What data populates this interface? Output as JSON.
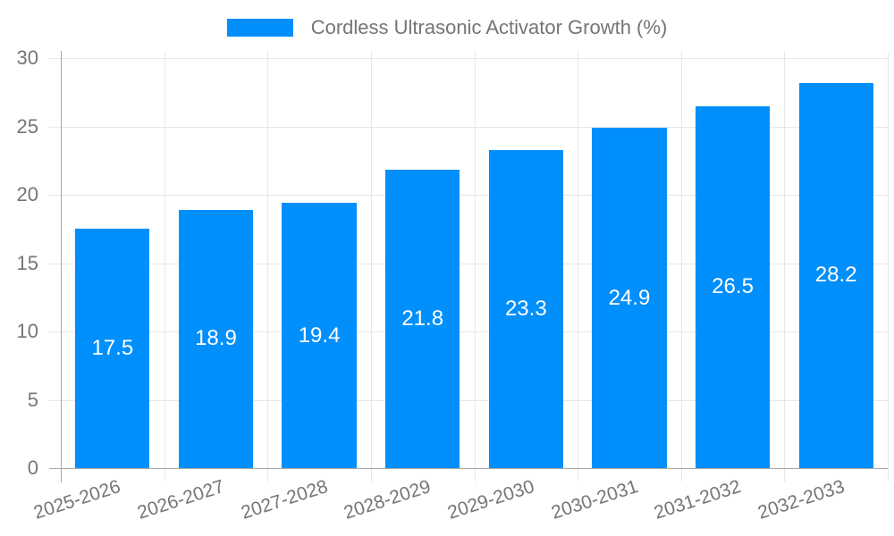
{
  "chart_data": {
    "type": "bar",
    "title": "Cordless Ultrasonic Activator Growth (%)",
    "legend": {
      "label": "Cordless Ultrasonic Activator Growth (%)",
      "position": "top-center",
      "marker": "square"
    },
    "categories": [
      "2025-2026",
      "2026-2027",
      "2027-2028",
      "2028-2029",
      "2029-2030",
      "2030-2031",
      "2031-2032",
      "2032-2033"
    ],
    "values": [
      17.5,
      18.9,
      19.4,
      21.8,
      23.3,
      24.9,
      26.5,
      28.2
    ],
    "value_labels": [
      "17.5",
      "18.9",
      "19.4",
      "21.8",
      "23.3",
      "24.9",
      "26.5",
      "28.2"
    ],
    "xlabel": "",
    "ylabel": "",
    "ylim": [
      0,
      30
    ],
    "ytick_step": 5,
    "ytick_labels": [
      "0",
      "5",
      "10",
      "15",
      "20",
      "25",
      "30"
    ],
    "grid": true,
    "value_label_position": "center-inside",
    "xtick_rotation_deg": -18,
    "colors": {
      "bar": "#008ffb",
      "value_label": "#ffffff",
      "gridline": "#e7e7e7",
      "axis_line": "#a8a8a8",
      "tick_label": "#757575",
      "legend_text": "#757575",
      "background": "#ffffff"
    }
  }
}
